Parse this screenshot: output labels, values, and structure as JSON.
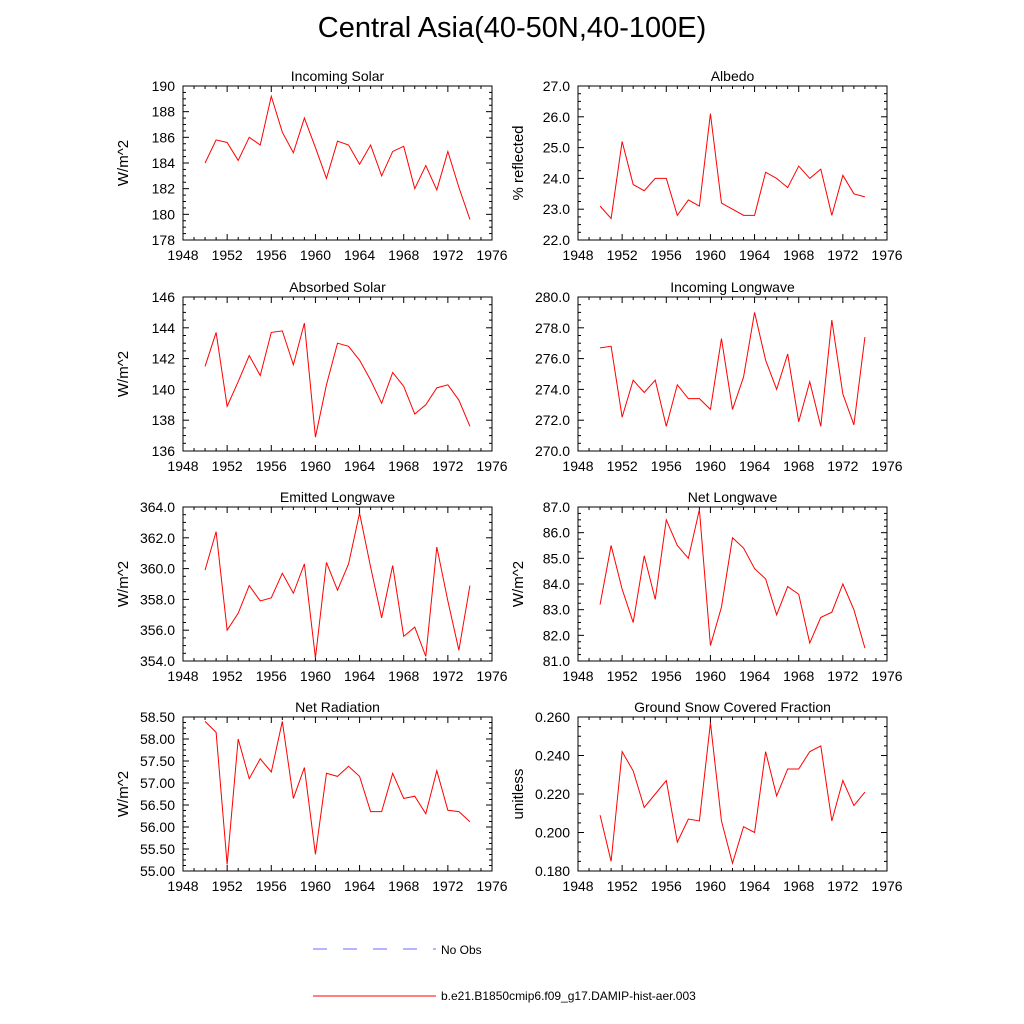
{
  "title": "Central Asia(40-50N,40-100E)",
  "chart_data": [
    {
      "type": "line",
      "title": "Incoming Solar",
      "ylabel": "W/m^2",
      "xlim": [
        1948,
        1976
      ],
      "ylim": [
        178,
        190
      ],
      "xticks": [
        1948,
        1952,
        1956,
        1960,
        1964,
        1968,
        1972,
        1976
      ],
      "yticks": [
        "178",
        "180",
        "182",
        "184",
        "186",
        "188",
        "190"
      ],
      "x": [
        1950,
        1951,
        1952,
        1953,
        1954,
        1955,
        1956,
        1957,
        1958,
        1959,
        1960,
        1961,
        1962,
        1963,
        1964,
        1965,
        1966,
        1967,
        1968,
        1969,
        1970,
        1971,
        1972,
        1973,
        1974
      ],
      "series": [
        {
          "values": [
            184.0,
            185.8,
            185.6,
            184.2,
            186.0,
            185.4,
            189.2,
            186.4,
            184.8,
            187.5,
            185.2,
            182.8,
            185.7,
            185.4,
            183.9,
            185.4,
            183.0,
            184.9,
            185.3,
            182.0,
            183.8,
            181.9,
            184.9,
            182.1,
            179.6
          ]
        }
      ]
    },
    {
      "type": "line",
      "title": "Albedo",
      "ylabel": "% reflected",
      "xlim": [
        1948,
        1976
      ],
      "ylim": [
        22.0,
        27.0
      ],
      "xticks": [
        1948,
        1952,
        1956,
        1960,
        1964,
        1968,
        1972,
        1976
      ],
      "yticks": [
        "22.0",
        "23.0",
        "24.0",
        "25.0",
        "26.0",
        "27.0"
      ],
      "x": [
        1950,
        1951,
        1952,
        1953,
        1954,
        1955,
        1956,
        1957,
        1958,
        1959,
        1960,
        1961,
        1962,
        1963,
        1964,
        1965,
        1966,
        1967,
        1968,
        1969,
        1970,
        1971,
        1972,
        1973,
        1974
      ],
      "series": [
        {
          "values": [
            23.1,
            22.7,
            25.2,
            23.8,
            23.6,
            24.0,
            24.0,
            22.8,
            23.3,
            23.1,
            26.1,
            23.2,
            23.0,
            22.8,
            22.8,
            24.2,
            24.0,
            23.7,
            24.4,
            24.0,
            24.3,
            22.8,
            24.1,
            23.5,
            23.4
          ]
        }
      ]
    },
    {
      "type": "line",
      "title": "Absorbed Solar",
      "ylabel": "W/m^2",
      "xlim": [
        1948,
        1976
      ],
      "ylim": [
        136,
        146
      ],
      "xticks": [
        1948,
        1952,
        1956,
        1960,
        1964,
        1968,
        1972,
        1976
      ],
      "yticks": [
        "136",
        "138",
        "140",
        "142",
        "144",
        "146"
      ],
      "x": [
        1950,
        1951,
        1952,
        1953,
        1954,
        1955,
        1956,
        1957,
        1958,
        1959,
        1960,
        1961,
        1962,
        1963,
        1964,
        1965,
        1966,
        1967,
        1968,
        1969,
        1970,
        1971,
        1972,
        1973,
        1974
      ],
      "series": [
        {
          "values": [
            141.5,
            143.7,
            138.9,
            140.5,
            142.2,
            140.9,
            143.7,
            143.8,
            141.6,
            144.3,
            136.9,
            140.3,
            143.0,
            142.8,
            141.9,
            140.6,
            139.1,
            141.1,
            140.2,
            138.4,
            139.0,
            140.1,
            140.3,
            139.3,
            137.6
          ]
        }
      ]
    },
    {
      "type": "line",
      "title": "Incoming Longwave",
      "ylabel": "",
      "xlim": [
        1948,
        1976
      ],
      "ylim": [
        270.0,
        280.0
      ],
      "xticks": [
        1948,
        1952,
        1956,
        1960,
        1964,
        1968,
        1972,
        1976
      ],
      "yticks": [
        "270.0",
        "272.0",
        "274.0",
        "276.0",
        "278.0",
        "280.0"
      ],
      "x": [
        1950,
        1951,
        1952,
        1953,
        1954,
        1955,
        1956,
        1957,
        1958,
        1959,
        1960,
        1961,
        1962,
        1963,
        1964,
        1965,
        1966,
        1967,
        1968,
        1969,
        1970,
        1971,
        1972,
        1973,
        1974
      ],
      "series": [
        {
          "values": [
            276.7,
            276.8,
            272.2,
            274.6,
            273.8,
            274.6,
            271.6,
            274.3,
            273.4,
            273.4,
            272.7,
            277.3,
            272.7,
            274.8,
            279.0,
            275.9,
            274.0,
            276.3,
            271.9,
            274.5,
            271.6,
            278.5,
            273.7,
            271.7,
            277.4
          ]
        }
      ]
    },
    {
      "type": "line",
      "title": "Emitted Longwave",
      "ylabel": "W/m^2",
      "xlim": [
        1948,
        1976
      ],
      "ylim": [
        354.0,
        364.0
      ],
      "xticks": [
        1948,
        1952,
        1956,
        1960,
        1964,
        1968,
        1972,
        1976
      ],
      "yticks": [
        "354.0",
        "356.0",
        "358.0",
        "360.0",
        "362.0",
        "364.0"
      ],
      "x": [
        1950,
        1951,
        1952,
        1953,
        1954,
        1955,
        1956,
        1957,
        1958,
        1959,
        1960,
        1961,
        1962,
        1963,
        1964,
        1965,
        1966,
        1967,
        1968,
        1969,
        1970,
        1971,
        1972,
        1973,
        1974
      ],
      "series": [
        {
          "values": [
            359.9,
            362.4,
            356.0,
            357.1,
            358.9,
            357.9,
            358.1,
            359.7,
            358.4,
            360.3,
            354.2,
            360.4,
            358.6,
            360.3,
            363.6,
            360.1,
            356.8,
            360.2,
            355.6,
            356.2,
            354.3,
            361.4,
            357.9,
            354.7,
            358.9
          ]
        }
      ]
    },
    {
      "type": "line",
      "title": "Net Longwave",
      "ylabel": "W/m^2",
      "xlim": [
        1948,
        1976
      ],
      "ylim": [
        81.0,
        87.0
      ],
      "xticks": [
        1948,
        1952,
        1956,
        1960,
        1964,
        1968,
        1972,
        1976
      ],
      "yticks": [
        "81.0",
        "82.0",
        "83.0",
        "84.0",
        "85.0",
        "86.0",
        "87.0"
      ],
      "x": [
        1950,
        1951,
        1952,
        1953,
        1954,
        1955,
        1956,
        1957,
        1958,
        1959,
        1960,
        1961,
        1962,
        1963,
        1964,
        1965,
        1966,
        1967,
        1968,
        1969,
        1970,
        1971,
        1972,
        1973,
        1974
      ],
      "series": [
        {
          "values": [
            83.2,
            85.5,
            83.8,
            82.5,
            85.1,
            83.4,
            86.5,
            85.5,
            85.0,
            86.9,
            81.6,
            83.1,
            85.8,
            85.4,
            84.6,
            84.2,
            82.8,
            83.9,
            83.6,
            81.7,
            82.7,
            82.9,
            84.0,
            83.0,
            81.5
          ]
        }
      ]
    },
    {
      "type": "line",
      "title": "Net Radiation",
      "ylabel": "W/m^2",
      "xlim": [
        1948,
        1976
      ],
      "ylim": [
        55.0,
        58.5
      ],
      "xticks": [
        1948,
        1952,
        1956,
        1960,
        1964,
        1968,
        1972,
        1976
      ],
      "yticks": [
        "55.00",
        "55.50",
        "56.00",
        "56.50",
        "57.00",
        "57.50",
        "58.00",
        "58.50"
      ],
      "x": [
        1950,
        1951,
        1952,
        1953,
        1954,
        1955,
        1956,
        1957,
        1958,
        1959,
        1960,
        1961,
        1962,
        1963,
        1964,
        1965,
        1966,
        1967,
        1968,
        1969,
        1970,
        1971,
        1972,
        1973,
        1974
      ],
      "series": [
        {
          "values": [
            58.4,
            58.15,
            55.15,
            58.0,
            57.1,
            57.55,
            57.25,
            58.4,
            56.65,
            57.35,
            55.38,
            57.22,
            57.15,
            57.38,
            57.15,
            56.35,
            56.35,
            57.22,
            56.65,
            56.7,
            56.3,
            57.28,
            56.38,
            56.35,
            56.12
          ]
        }
      ]
    },
    {
      "type": "line",
      "title": "Ground Snow Covered Fraction",
      "ylabel": "unitless",
      "xlim": [
        1948,
        1976
      ],
      "ylim": [
        0.18,
        0.26
      ],
      "xticks": [
        1948,
        1952,
        1956,
        1960,
        1964,
        1968,
        1972,
        1976
      ],
      "yticks": [
        "0.180",
        "0.200",
        "0.220",
        "0.240",
        "0.260"
      ],
      "x": [
        1950,
        1951,
        1952,
        1953,
        1954,
        1955,
        1956,
        1957,
        1958,
        1959,
        1960,
        1961,
        1962,
        1963,
        1964,
        1965,
        1966,
        1967,
        1968,
        1969,
        1970,
        1971,
        1972,
        1973,
        1974
      ],
      "series": [
        {
          "values": [
            0.209,
            0.185,
            0.242,
            0.232,
            0.213,
            0.22,
            0.227,
            0.195,
            0.207,
            0.206,
            0.257,
            0.206,
            0.184,
            0.203,
            0.2,
            0.242,
            0.219,
            0.233,
            0.233,
            0.242,
            0.245,
            0.206,
            0.227,
            0.214,
            0.221
          ]
        }
      ]
    }
  ],
  "legend": [
    {
      "label": "No Obs",
      "color": "#6a6aff",
      "style": "dashed"
    },
    {
      "label": "b.e21.B1850cmip6.f09_g17.DAMIP-hist-aer.003",
      "color": "#ff0000",
      "style": "solid"
    }
  ],
  "colors": {
    "series_line": "#ff0000",
    "axis": "#000000"
  }
}
